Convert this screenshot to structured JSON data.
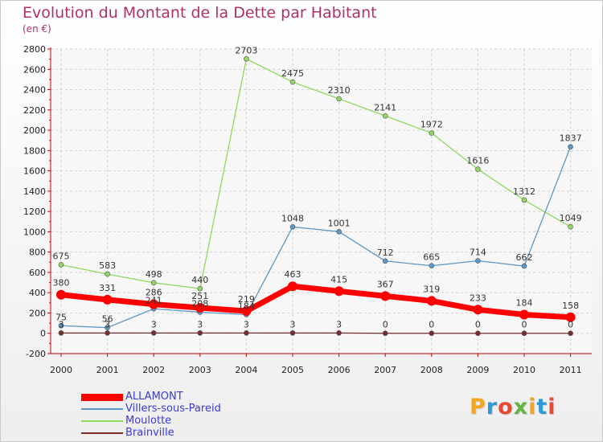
{
  "title": "Evolution du Montant de la Dette par Habitant",
  "subtitle": "(en €)",
  "logo": {
    "letters": [
      "P",
      "r",
      "o",
      "x",
      "i",
      "t",
      "i"
    ],
    "colors": [
      "#f2a51f",
      "#2d9ad6",
      "#e74a2f",
      "#63b443",
      "#f2a51f",
      "#2d9ad6",
      "#e74a2f"
    ]
  },
  "chart_data": {
    "type": "line",
    "x": [
      "2000",
      "2001",
      "2002",
      "2003",
      "2004",
      "2005",
      "2006",
      "2007",
      "2008",
      "2009",
      "2010",
      "2011"
    ],
    "ylim": [
      -200,
      2800
    ],
    "yticks": [
      "-200",
      "0",
      "200",
      "400",
      "600",
      "800",
      "1000",
      "1200",
      "1400",
      "1600",
      "1800",
      "2000",
      "2200",
      "2400",
      "2600",
      "2800"
    ],
    "grid": true,
    "legend": "bottom-left",
    "series": [
      {
        "name": "ALLAMONT",
        "color": "#ff0000",
        "values": [
          380,
          331,
          286,
          251,
          219,
          463,
          415,
          367,
          319,
          233,
          184,
          158
        ],
        "labels": [
          "380",
          "331",
          "286",
          "251",
          "219",
          "463",
          "415",
          "367",
          "319",
          "233",
          "184",
          "158"
        ]
      },
      {
        "name": "Villers-sous-Pareid",
        "color": "#5b98c9",
        "values": [
          75,
          56,
          241,
          208,
          184,
          1048,
          1001,
          712,
          665,
          714,
          662,
          1837
        ],
        "labels": [
          "75",
          "56",
          "241",
          "208",
          "184",
          "1048",
          "1001",
          "712",
          "665",
          "714",
          "662",
          "1837"
        ]
      },
      {
        "name": "Moulotte",
        "color": "#90d860",
        "values": [
          675,
          583,
          498,
          440,
          2703,
          2475,
          2310,
          2141,
          1972,
          1616,
          1312,
          1049
        ],
        "labels": [
          "675",
          "583",
          "498",
          "440",
          "2703",
          "2475",
          "2310",
          "2141",
          "1972",
          "1616",
          "1312",
          "1049"
        ]
      },
      {
        "name": "Brainville",
        "color": "#7a2c2c",
        "values": [
          3,
          3,
          3,
          3,
          3,
          3,
          3,
          0,
          0,
          0,
          0,
          0
        ],
        "labels": [
          "3",
          "3",
          "3",
          "3",
          "3",
          "3",
          "3",
          "0",
          "0",
          "0",
          "0",
          "0"
        ]
      }
    ]
  }
}
